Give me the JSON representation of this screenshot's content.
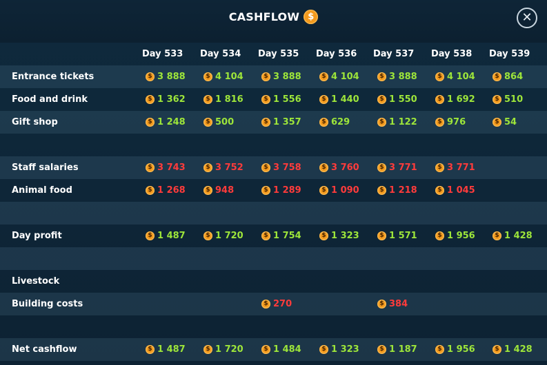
{
  "header": {
    "title": "CASHFLOW",
    "title_icon": "coin-icon",
    "close_icon": "close-icon"
  },
  "colors": {
    "positive": "#9de53a",
    "negative": "#ff3b3b",
    "coin": "#f39a1d"
  },
  "days": [
    "Day 533",
    "Day 534",
    "Day 535",
    "Day 536",
    "Day 537",
    "Day 538",
    "Day 539"
  ],
  "rows": [
    {
      "label": "Entrance tickets",
      "sign": "pos",
      "values": [
        "3 888",
        "4 104",
        "3 888",
        "4 104",
        "3 888",
        "4 104",
        "864"
      ]
    },
    {
      "label": "Food and drink",
      "sign": "pos",
      "values": [
        "1 362",
        "1 816",
        "1 556",
        "1 440",
        "1 550",
        "1 692",
        "510"
      ]
    },
    {
      "label": "Gift shop",
      "sign": "pos",
      "values": [
        "1 248",
        "500",
        "1 357",
        "629",
        "1 122",
        "976",
        "54"
      ]
    },
    {
      "label": "",
      "sign": "pos",
      "values": []
    },
    {
      "label": "Staff salaries",
      "sign": "neg",
      "values": [
        "3 743",
        "3 752",
        "3 758",
        "3 760",
        "3 771",
        "3 771",
        ""
      ]
    },
    {
      "label": "Animal food",
      "sign": "neg",
      "values": [
        "1 268",
        "948",
        "1 289",
        "1 090",
        "1 218",
        "1 045",
        ""
      ]
    },
    {
      "label": "",
      "sign": "pos",
      "values": []
    },
    {
      "label": "Day profit",
      "sign": "pos",
      "values": [
        "1 487",
        "1 720",
        "1 754",
        "1 323",
        "1 571",
        "1 956",
        "1 428"
      ]
    },
    {
      "label": "",
      "sign": "pos",
      "values": []
    },
    {
      "label": "Livestock",
      "sign": "neg",
      "values": [
        "",
        "",
        "",
        "",
        "",
        "",
        ""
      ]
    },
    {
      "label": "Building costs",
      "sign": "neg",
      "values": [
        "",
        "",
        "270",
        "",
        "384",
        "",
        ""
      ]
    },
    {
      "label": "",
      "sign": "pos",
      "values": []
    },
    {
      "label": "Net cashflow",
      "sign": "pos",
      "values": [
        "1 487",
        "1 720",
        "1 484",
        "1 323",
        "1 187",
        "1 956",
        "1 428"
      ]
    }
  ]
}
